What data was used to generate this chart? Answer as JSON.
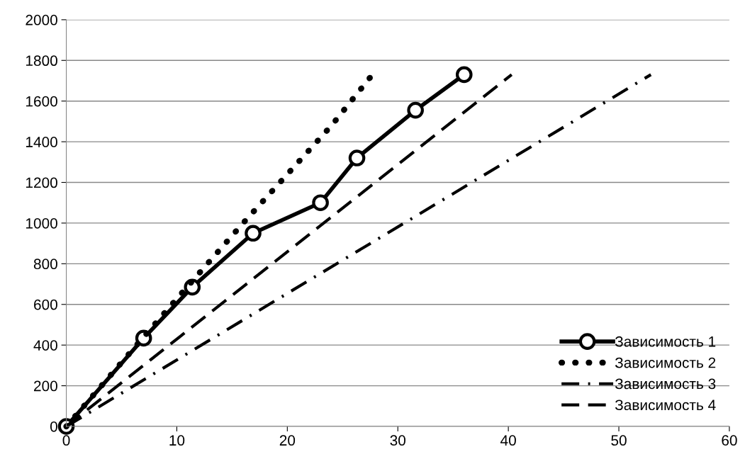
{
  "chart_data": {
    "type": "line",
    "xlim": [
      0,
      60
    ],
    "ylim": [
      0,
      2000
    ],
    "xticks": [
      0,
      10,
      20,
      30,
      40,
      50,
      60
    ],
    "yticks": [
      0,
      200,
      400,
      600,
      800,
      1000,
      1200,
      1400,
      1600,
      1800,
      2000
    ],
    "grid": "y",
    "legend": "bottom right",
    "series": [
      {
        "name": "Зависимость 1",
        "color": "#000000",
        "x": [
          0,
          7.0,
          11.4,
          16.9,
          23.0,
          26.3,
          31.6,
          36.0
        ],
        "values": [
          0,
          434,
          685,
          950,
          1100,
          1320,
          1555,
          1730
        ],
        "marker": "circle",
        "line_style": "solid"
      },
      {
        "name": "Зависимость 2",
        "color": "#000000",
        "x": [
          0,
          7,
          11,
          16,
          20,
          24,
          27.7
        ],
        "values": [
          0,
          440,
          690,
          1000,
          1240,
          1480,
          1730
        ],
        "marker": "none",
        "line_style": "dotted"
      },
      {
        "name": "Зависимость 3",
        "color": "#000000",
        "x": [
          0,
          52.9
        ],
        "values": [
          0,
          1730
        ],
        "marker": "none",
        "line_style": "dashdot"
      },
      {
        "name": "Зависимость 4",
        "color": "#000000",
        "x": [
          0,
          40.3
        ],
        "values": [
          0,
          1730
        ],
        "marker": "none",
        "line_style": "dashed"
      }
    ]
  }
}
